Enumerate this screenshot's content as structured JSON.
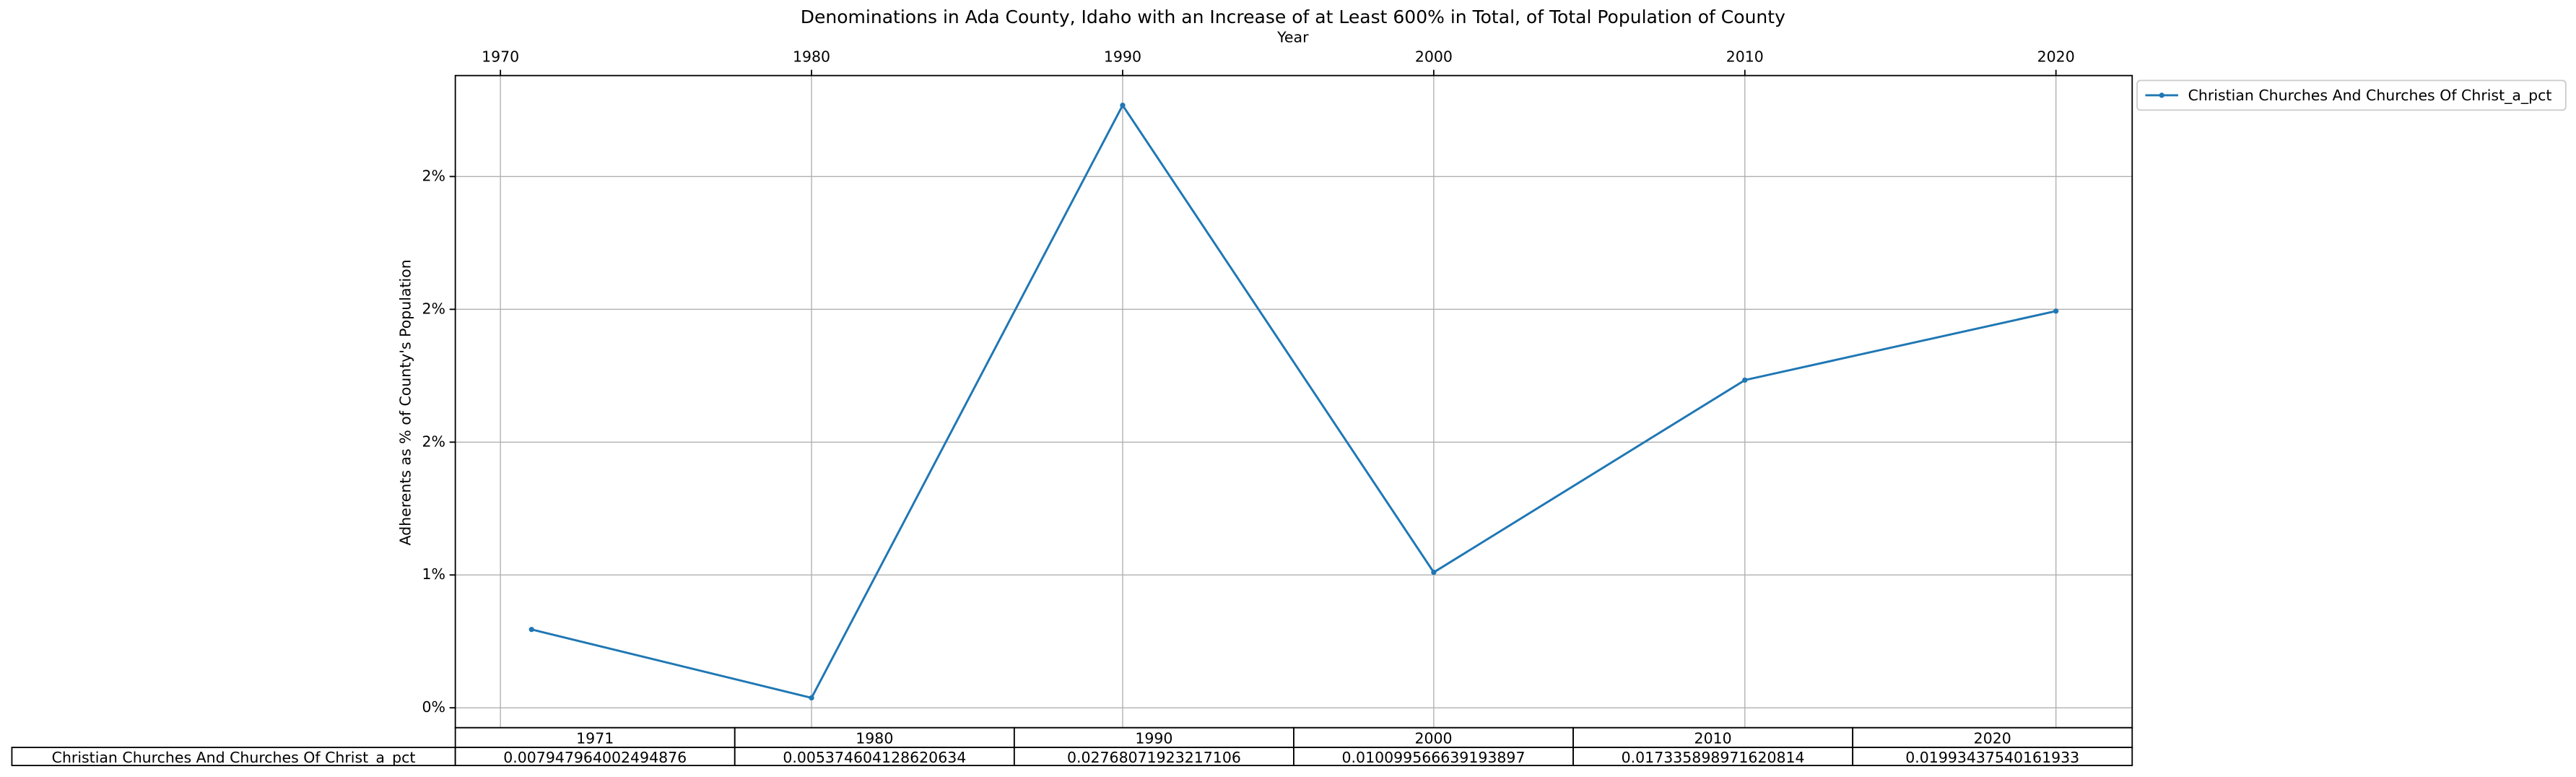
{
  "chart_data": {
    "type": "line",
    "title": "Denominations in Ada County, Idaho with an Increase of at Least 600% in Total, of Total Population of County",
    "x_label": "Year",
    "y_label": "Adherents as % of County's Population",
    "x": [
      1971,
      1980,
      1990,
      2000,
      2010,
      2020
    ],
    "series": [
      {
        "name": "Christian Churches And Churches Of Christ_a_pct",
        "color": "#1f77b4",
        "values": [
          0.007947964002494876,
          0.005374604128620634,
          0.02768071923217106,
          0.010099566639193897,
          0.017335898971620814,
          0.01993437540161933
        ]
      }
    ],
    "xlim": [
      1968.55,
      2022.45
    ],
    "xticks": [
      1970,
      1980,
      1990,
      2000,
      2010,
      2020
    ],
    "ylim": [
      0.00425,
      0.0288
    ],
    "yticks": [
      {
        "value": 0.005,
        "label": "0%"
      },
      {
        "value": 0.01,
        "label": "1%"
      },
      {
        "value": 0.015,
        "label": "2%"
      },
      {
        "value": 0.02,
        "label": "2%"
      },
      {
        "value": 0.025,
        "label": "2%"
      }
    ],
    "grid": true,
    "legend": "outside-upper-right"
  }
}
